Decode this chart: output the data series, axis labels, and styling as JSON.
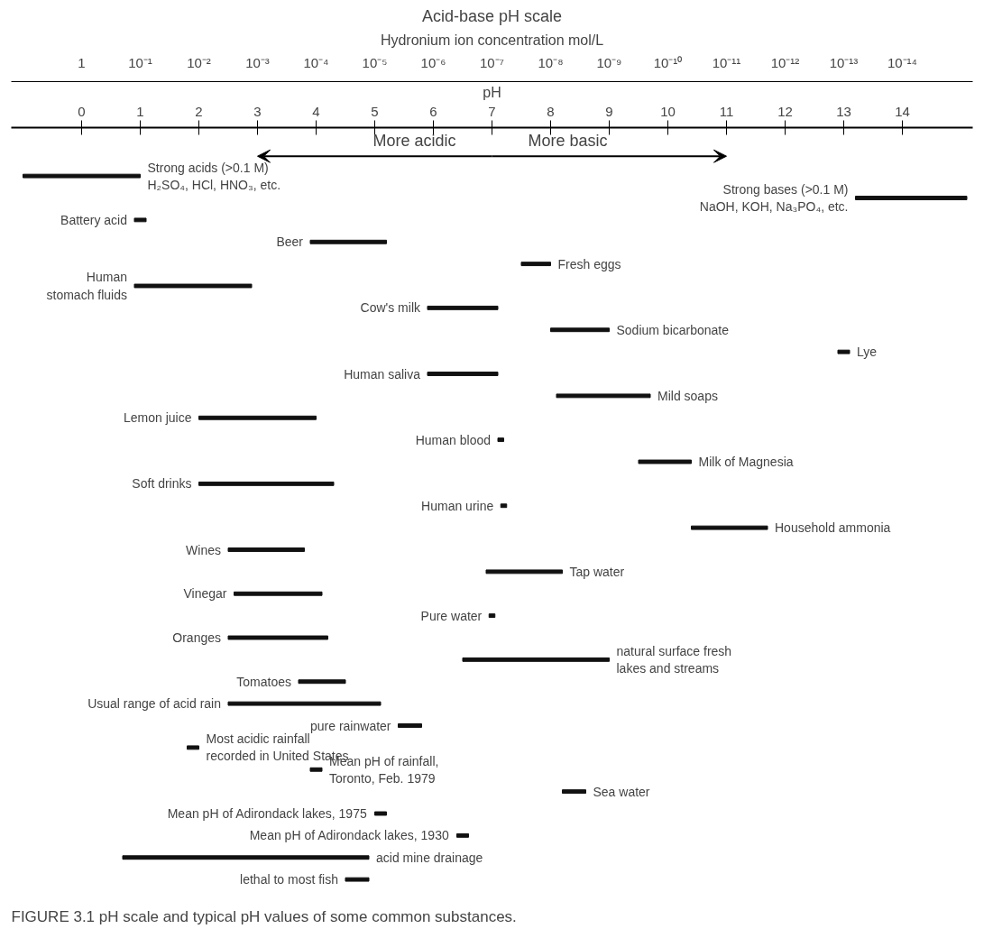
{
  "chart_data": {
    "type": "bar",
    "orientation": "horizontal",
    "title": "Acid-base pH scale",
    "xlabel": "pH",
    "x2label": "Hydronium ion concentration mol/L",
    "categories": [
      "Strong acids (>0.1 M)\nH₂SO₄, HCl, HNO₃, etc.",
      "Strong bases (>0.1 M)\nNaOH, KOH, Na₃PO₄, etc.",
      "Battery acid",
      "Beer",
      "Fresh eggs",
      "Human\nstomach fluids",
      "Cow's milk",
      "Sodium bicarbonate",
      "Lye",
      "Human saliva",
      "Mild soaps",
      "Lemon juice",
      "Human blood",
      "Milk of Magnesia",
      "Soft drinks",
      "Human urine",
      "Household ammonia",
      "Wines",
      "Tap water",
      "Vinegar",
      "Pure water",
      "Oranges",
      "natural surface fresh\nlakes and streams",
      "Tomatoes",
      "Usual range of acid rain",
      "pure rainwater",
      "Most acidic rainfall\nrecorded in United States",
      "Mean pH of rainfall,\nToronto, Feb. 1979",
      "Sea water",
      "Mean pH of Adirondack lakes, 1975",
      "Mean pH of Adirondack lakes, 1930",
      "acid mine drainage",
      "lethal to most fish"
    ],
    "base": [
      -1,
      13.2,
      0.9,
      3.9,
      7.5,
      0.9,
      5.9,
      8.0,
      12.9,
      5.9,
      8.1,
      2.0,
      7.1,
      9.5,
      2.0,
      7.15,
      10.4,
      2.5,
      6.9,
      2.6,
      6.95,
      2.5,
      6.5,
      3.7,
      2.5,
      5.4,
      1.8,
      3.9,
      8.2,
      5.0,
      6.4,
      0.7,
      4.5
    ],
    "values": [
      2,
      1.9,
      0.2,
      1.3,
      0.5,
      2.0,
      1.2,
      1.0,
      0.2,
      1.2,
      1.6,
      2.0,
      0.1,
      0.9,
      2.3,
      0.1,
      1.3,
      1.3,
      1.3,
      1.5,
      0.1,
      1.7,
      2.5,
      0.8,
      2.6,
      0.4,
      0.2,
      0.2,
      0.4,
      0.2,
      0.2,
      4.2,
      0.4
    ],
    "color": "#111111",
    "xlim": [
      -1.2,
      15.2
    ],
    "xticks": [
      0,
      1,
      2,
      3,
      4,
      5,
      6,
      7,
      8,
      9,
      10,
      11,
      12,
      13,
      14
    ],
    "log": "x2",
    "x2lim": [
      15.85,
      6.31e-16
    ],
    "x2ticks": [
      1,
      {
        "value": 0.1,
        "label": "10⁻¹"
      },
      {
        "value": 0.01,
        "label": "10⁻²"
      },
      {
        "value": 0.001,
        "label": "10⁻³"
      },
      {
        "value": 0.0001,
        "label": "10⁻⁴"
      },
      {
        "value": 1e-05,
        "label": "10⁻⁵"
      },
      {
        "value": 1e-06,
        "label": "10⁻⁶"
      },
      {
        "value": 1e-07,
        "label": "10⁻⁷"
      },
      {
        "value": 1e-08,
        "label": "10⁻⁸"
      },
      {
        "value": 1e-09,
        "label": "10⁻⁹"
      },
      {
        "value": 1e-10,
        "label": "10⁻¹⁰"
      },
      {
        "value": 1e-11,
        "label": "10⁻¹¹"
      },
      {
        "value": 1e-12,
        "label": "10⁻¹²"
      },
      {
        "value": 1e-13,
        "label": "10⁻¹³"
      },
      {
        "value": 1e-14,
        "label": "10⁻¹⁴"
      }
    ],
    "annotations": [
      "More acidic",
      "More basic",
      "FIGURE 3.1 pH scale and typical pH values of some common substances."
    ]
  }
}
